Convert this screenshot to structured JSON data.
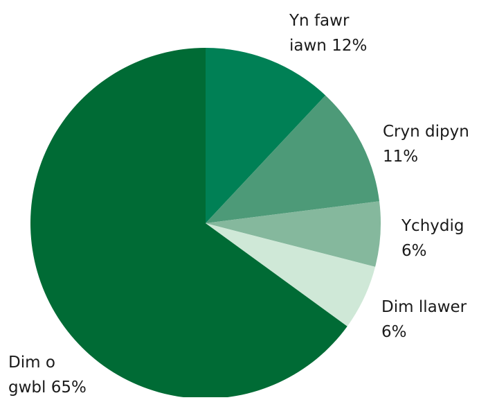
{
  "chart_data": {
    "type": "pie",
    "categories": [
      "Yn fawr iawn",
      "Cryn dipyn",
      "Ychydig",
      "Dim llawer",
      "Dim o gwbl"
    ],
    "values": [
      12,
      11,
      6,
      6,
      65
    ],
    "value_labels": [
      "12%",
      "11%",
      "6%",
      "6%",
      "65%"
    ],
    "colors": [
      "#008055",
      "#4d9a78",
      "#85b89d",
      "#cfe8d7",
      "#006b35"
    ]
  }
}
